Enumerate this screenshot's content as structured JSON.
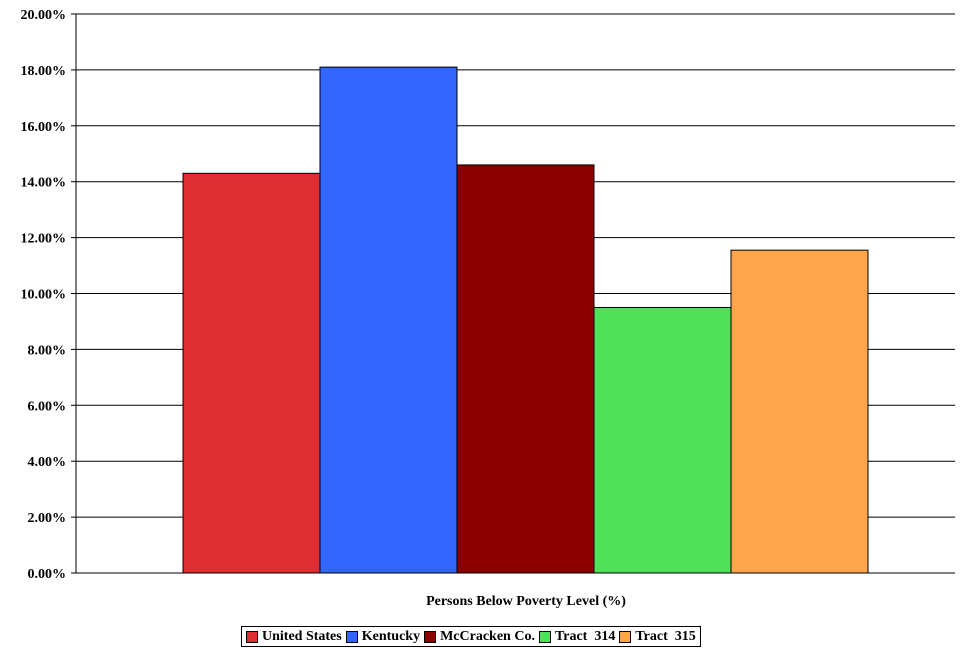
{
  "chart_data": {
    "type": "bar",
    "xlabel": "Persons Below Poverty Level (%)",
    "ylabel": "",
    "ylim": [
      0,
      20
    ],
    "yticks": [
      "0.00%",
      "2.00%",
      "4.00%",
      "6.00%",
      "8.00%",
      "10.00%",
      "12.00%",
      "14.00%",
      "16.00%",
      "18.00%",
      "20.00%"
    ],
    "grid": true,
    "legend_position": "bottom",
    "series": [
      {
        "name": "United States",
        "values": [
          14.3
        ],
        "color": "#DE2E33"
      },
      {
        "name": "Kentucky",
        "values": [
          18.1
        ],
        "color": "#3366FF"
      },
      {
        "name": "McCracken Co.",
        "values": [
          14.6
        ],
        "color": "#8B0000"
      },
      {
        "name": "Tract  314",
        "values": [
          9.5
        ],
        "color": "#50E05A"
      },
      {
        "name": "Tract  315",
        "values": [
          11.55
        ],
        "color": "#FFA64D"
      }
    ]
  }
}
